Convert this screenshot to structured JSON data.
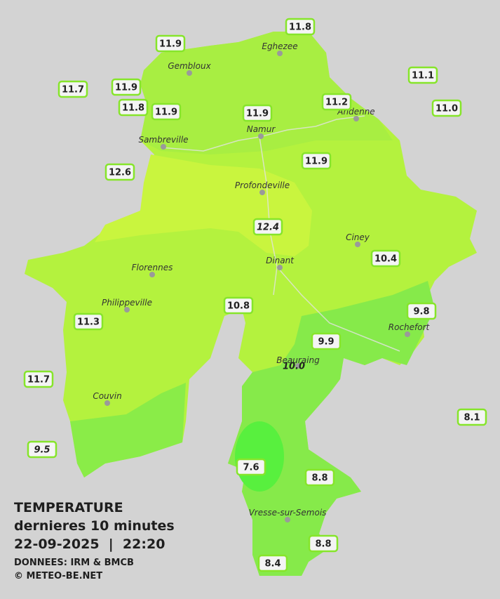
{
  "legend": {
    "title": "TEMPERATURE",
    "subtitle": "dernieres 10 minutes",
    "datetime": "22-09-2025  |  22:20",
    "source": "DONNEES: IRM & BMCB",
    "copyright": "© METEO-BE.NET"
  },
  "cities": [
    "Eghezee",
    "Gembloux",
    "Andenne",
    "Namur",
    "Sambreville",
    "Profondeville",
    "Ciney",
    "Dinant",
    "Florennes",
    "Philippeville",
    "Rochefort",
    "Beauraing",
    "Couvin",
    "Vresse-sur-Semois"
  ],
  "readings": [
    "11.8",
    "11.9",
    "11.1",
    "11.7",
    "11.9",
    "11.2",
    "11.8",
    "11.9",
    "11.9",
    "11.0",
    "11.9",
    "12.6",
    "12.4",
    "10.4",
    "10.8",
    "9.8",
    "11.3",
    "9.9",
    "10.0",
    "11.7",
    "8.1",
    "9.5",
    "7.6",
    "8.8",
    "8.8",
    "8.4"
  ]
}
